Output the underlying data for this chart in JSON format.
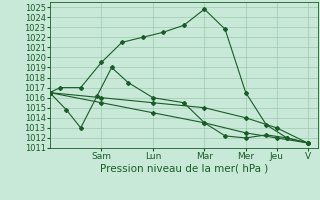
{
  "title": "Pression niveau de la mer( hPa )",
  "ylim": [
    1011,
    1025.5
  ],
  "xlim": [
    0,
    13
  ],
  "bg_color": "#c8e8d8",
  "grid_color": "#a0c8b0",
  "line_color": "#1a5c28",
  "day_labels": [
    "Sam",
    "Lun",
    "Mar",
    "Mer",
    "Jeu",
    "V"
  ],
  "day_positions": [
    2.5,
    5.0,
    7.5,
    9.5,
    11.0,
    12.5
  ],
  "yticks": [
    1011,
    1012,
    1013,
    1014,
    1015,
    1016,
    1017,
    1018,
    1019,
    1020,
    1021,
    1022,
    1023,
    1024,
    1025
  ],
  "lines": [
    {
      "x": [
        0.0,
        0.5,
        1.5,
        2.5,
        3.5,
        4.5,
        5.5,
        6.5,
        7.5,
        8.5,
        9.5,
        10.5,
        11.5,
        12.5
      ],
      "y": [
        1016.5,
        1017.0,
        1017.0,
        1019.5,
        1021.5,
        1022.0,
        1022.5,
        1023.2,
        1024.8,
        1022.8,
        1016.5,
        1013.3,
        1012.0,
        1011.5
      ]
    },
    {
      "x": [
        0.0,
        0.8,
        1.5,
        2.3,
        3.0,
        3.8,
        5.0,
        6.5,
        7.5,
        8.5,
        9.5,
        10.5,
        11.5,
        12.5
      ],
      "y": [
        1016.5,
        1014.8,
        1013.0,
        1016.2,
        1019.0,
        1017.5,
        1016.0,
        1015.5,
        1013.5,
        1012.2,
        1012.0,
        1012.3,
        1012.0,
        1011.5
      ]
    },
    {
      "x": [
        0.0,
        2.5,
        5.0,
        7.5,
        9.5,
        11.0,
        12.5
      ],
      "y": [
        1016.5,
        1016.0,
        1015.5,
        1015.0,
        1014.0,
        1013.0,
        1011.5
      ]
    },
    {
      "x": [
        0.0,
        2.5,
        5.0,
        7.5,
        9.5,
        11.0,
        12.5
      ],
      "y": [
        1016.5,
        1015.5,
        1014.5,
        1013.5,
        1012.5,
        1012.0,
        1011.5
      ]
    }
  ]
}
